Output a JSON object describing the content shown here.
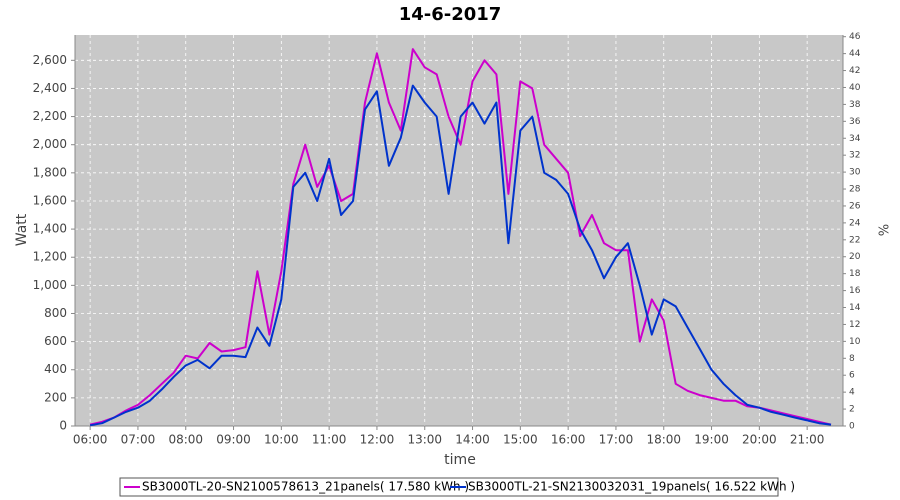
{
  "chart_data": {
    "type": "line",
    "title": "14-6-2017",
    "x_label": "time",
    "y_label": "Watt",
    "y2_label": "%",
    "x": [
      "06:00",
      "06:15",
      "06:30",
      "06:45",
      "07:00",
      "07:15",
      "07:30",
      "07:45",
      "08:00",
      "08:15",
      "08:30",
      "08:45",
      "09:00",
      "09:15",
      "09:30",
      "09:45",
      "10:00",
      "10:15",
      "10:30",
      "10:45",
      "11:00",
      "11:15",
      "11:30",
      "11:45",
      "12:00",
      "12:15",
      "12:30",
      "12:45",
      "13:00",
      "13:15",
      "13:30",
      "13:45",
      "14:00",
      "14:15",
      "14:30",
      "14:45",
      "15:00",
      "15:15",
      "15:30",
      "15:45",
      "16:00",
      "16:15",
      "16:30",
      "16:45",
      "17:00",
      "17:15",
      "17:30",
      "17:45",
      "18:00",
      "18:15",
      "18:30",
      "18:45",
      "19:00",
      "19:15",
      "19:30",
      "19:45",
      "20:00",
      "20:15",
      "20:30",
      "20:45",
      "21:00",
      "21:15",
      "21:30"
    ],
    "series": [
      {
        "name": "SB3000TL-20-SN2100578613_21panels( 17.580 kWh )",
        "color": "#cc00cc",
        "values": [
          10,
          30,
          60,
          110,
          150,
          220,
          300,
          380,
          500,
          480,
          590,
          530,
          540,
          560,
          1100,
          650,
          1100,
          1720,
          2000,
          1700,
          1850,
          1600,
          1650,
          2300,
          2650,
          2300,
          2100,
          2680,
          2550,
          2500,
          2200,
          2000,
          2450,
          2600,
          2500,
          1650,
          2450,
          2400,
          2000,
          1900,
          1800,
          1350,
          1500,
          1300,
          1250,
          1250,
          600,
          900,
          750,
          300,
          250,
          220,
          200,
          180,
          180,
          140,
          130,
          110,
          90,
          70,
          50,
          30,
          10
        ]
      },
      {
        "name": "SB3000TL-21-SN2130032031_19panels( 16.522 kWh )",
        "color": "#0033cc",
        "values": [
          5,
          20,
          60,
          100,
          130,
          180,
          260,
          350,
          430,
          470,
          410,
          500,
          500,
          490,
          700,
          570,
          900,
          1700,
          1800,
          1600,
          1900,
          1500,
          1600,
          2250,
          2380,
          1850,
          2050,
          2420,
          2300,
          2200,
          1650,
          2200,
          2300,
          2150,
          2300,
          1300,
          2100,
          2200,
          1800,
          1750,
          1650,
          1400,
          1250,
          1050,
          1200,
          1300,
          1000,
          650,
          900,
          850,
          700,
          550,
          400,
          300,
          220,
          150,
          130,
          100,
          80,
          60,
          40,
          20,
          10
        ]
      }
    ],
    "xlim": [
      "05:41",
      "21:45"
    ],
    "xticks": [
      "06:00",
      "07:00",
      "08:00",
      "09:00",
      "10:00",
      "11:00",
      "12:00",
      "13:00",
      "14:00",
      "15:00",
      "16:00",
      "17:00",
      "18:00",
      "19:00",
      "20:00",
      "21:00"
    ],
    "ylim": [
      0,
      2780
    ],
    "yticks": [
      0,
      200,
      400,
      600,
      800,
      {
        "value": 1000,
        "label": "1,000"
      },
      {
        "value": 1200,
        "label": "1,200"
      },
      {
        "value": 1400,
        "label": "1,400"
      },
      {
        "value": 1600,
        "label": "1,600"
      },
      {
        "value": 1800,
        "label": "1,800"
      },
      {
        "value": 2000,
        "label": "2,000"
      },
      {
        "value": 2200,
        "label": "2,200"
      },
      {
        "value": 2400,
        "label": "2,400"
      },
      {
        "value": 2600,
        "label": "2,600"
      }
    ],
    "y2lim": [
      0,
      46.2
    ],
    "y2ticks": [
      0,
      2,
      4,
      6,
      8,
      10,
      12,
      14,
      16,
      18,
      20,
      22,
      24,
      26,
      28,
      30,
      32,
      34,
      36,
      38,
      40,
      42,
      44,
      46
    ],
    "grid": true,
    "legend": "bottom"
  }
}
